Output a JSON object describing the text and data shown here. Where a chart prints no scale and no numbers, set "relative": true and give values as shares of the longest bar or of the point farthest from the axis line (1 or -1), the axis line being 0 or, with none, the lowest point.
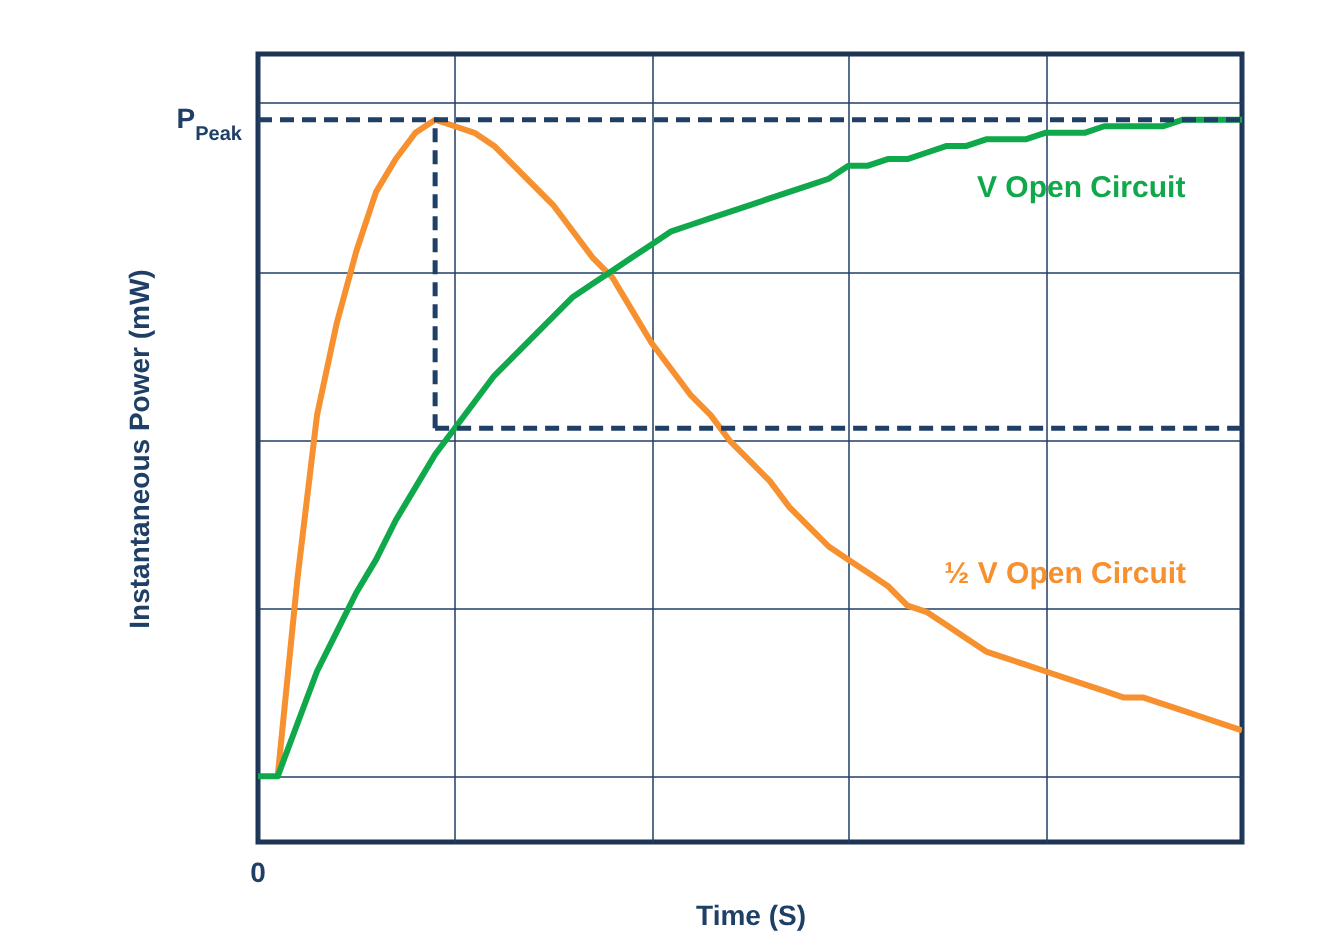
{
  "chart_data": {
    "type": "line",
    "xlabel": "Time (S)",
    "ylabel": "Instantaneous Power (mW)",
    "relative": true,
    "grid": true,
    "legend": false,
    "marker": "none",
    "annotations": [
      "0"
    ],
    "ref_lines": [
      {
        "axis": "y",
        "value": 1,
        "label": "P$_{Peak}$",
        "color": "#1f3f66",
        "line_style": "dashed"
      },
      {
        "axis": "y",
        "value": 0.53,
        "color": "#1f3f66",
        "line_style": "dashed"
      }
    ],
    "categories": [
      null,
      null,
      null,
      null,
      null,
      null,
      null,
      null,
      null,
      null,
      null,
      null,
      null,
      null,
      null,
      null,
      null,
      null,
      null,
      null,
      null,
      null,
      null,
      null,
      null,
      null,
      null,
      null,
      null,
      null,
      null,
      null,
      null,
      null,
      null,
      null,
      null,
      null,
      null,
      null,
      null,
      null,
      null,
      null,
      null,
      null,
      null,
      null,
      null,
      null,
      null
    ],
    "series": [
      {
        "name": "½ V Open Circuit",
        "color": "#f7902f",
        "line_style": "solid",
        "values": [
          null,
          0,
          0.3,
          0.55,
          0.69,
          0.8,
          0.89,
          0.94,
          0.98,
          1,
          0.99,
          0.98,
          0.96,
          0.93,
          0.9,
          0.87,
          0.83,
          0.79,
          0.76,
          0.71,
          0.66,
          0.62,
          0.58,
          0.55,
          0.51,
          0.48,
          0.45,
          0.41,
          0.38,
          0.35,
          0.33,
          0.31,
          0.29,
          0.26,
          0.25,
          0.23,
          0.21,
          0.19,
          0.18,
          0.17,
          0.16,
          0.15,
          0.14,
          0.13,
          0.12,
          0.12,
          0.11,
          0.1,
          0.09,
          0.08,
          0.07
        ]
      },
      {
        "name": "V Open Circuit",
        "color": "#0fa84a",
        "line_style": "solid",
        "values": [
          0,
          0,
          0.08,
          0.16,
          0.22,
          0.28,
          0.33,
          0.39,
          0.44,
          0.49,
          0.53,
          0.57,
          0.61,
          0.64,
          0.67,
          0.7,
          0.73,
          0.75,
          0.77,
          0.79,
          0.81,
          0.83,
          0.84,
          0.85,
          0.86,
          0.87,
          0.88,
          0.89,
          0.9,
          0.91,
          0.93,
          0.93,
          0.94,
          0.94,
          0.95,
          0.96,
          0.96,
          0.97,
          0.97,
          0.97,
          0.98,
          0.98,
          0.98,
          0.99,
          0.99,
          0.99,
          0.99,
          1,
          1,
          1,
          1
        ]
      }
    ]
  }
}
